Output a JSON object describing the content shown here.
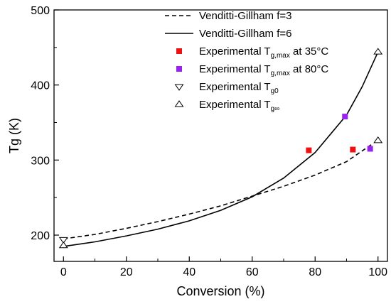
{
  "chart_data": {
    "type": "line",
    "title": "",
    "xlabel": "Conversion (%)",
    "ylabel": "Tg (K)",
    "xlim": [
      -3,
      103
    ],
    "ylim": [
      165,
      500
    ],
    "x_ticks": [
      0,
      20,
      40,
      60,
      80,
      100
    ],
    "y_ticks": [
      200,
      300,
      400,
      500
    ],
    "grid": false,
    "legend_position": "top-right",
    "series": [
      {
        "name": "Venditti-Gillham f=3",
        "style": "dashed",
        "color": "#000000",
        "x": [
          0,
          10,
          20,
          30,
          40,
          50,
          60,
          70,
          80,
          90,
          98
        ],
        "y": [
          195,
          201,
          209,
          218,
          228,
          239,
          252,
          265,
          280,
          298,
          321
        ]
      },
      {
        "name": "Venditti-Gillham f=6",
        "style": "solid",
        "color": "#000000",
        "x": [
          0,
          10,
          20,
          30,
          40,
          50,
          60,
          70,
          80,
          90,
          95,
          100
        ],
        "y": [
          185,
          191,
          199,
          208,
          219,
          233,
          251,
          276,
          310,
          360,
          398,
          444
        ]
      },
      {
        "name": "Experimental Tg,max at 35°C",
        "style": "marker-square",
        "color": "#ee1111",
        "x": [
          78,
          92
        ],
        "y": [
          313,
          314
        ]
      },
      {
        "name": "Experimental Tg,max at 80°C",
        "style": "marker-square",
        "color": "#9a22ee",
        "x": [
          89.5,
          97.5
        ],
        "y": [
          358,
          315
        ]
      },
      {
        "name": "Experimental Tg0",
        "style": "marker-triangle-down",
        "color": "#000000",
        "x": [
          0
        ],
        "y": [
          194
        ]
      },
      {
        "name": "Experimental Tg∞",
        "style": "marker-triangle-up",
        "color": "#000000",
        "x": [
          0,
          100,
          100
        ],
        "y": [
          186,
          444,
          326
        ]
      }
    ]
  },
  "legend": {
    "items": [
      {
        "main": "Venditti-Gillham f=3",
        "sub": "",
        "tail": ""
      },
      {
        "main": "Venditti-Gillham f=6",
        "sub": "",
        "tail": ""
      },
      {
        "main": "Experimental T",
        "sub": "g,max",
        "tail": " at 35°C"
      },
      {
        "main": "Experimental T",
        "sub": "g,max",
        "tail": " at 80°C"
      },
      {
        "main": "Experimental T",
        "sub": "g0",
        "tail": ""
      },
      {
        "main": "Experimental T",
        "sub": "g∞",
        "tail": ""
      }
    ]
  }
}
